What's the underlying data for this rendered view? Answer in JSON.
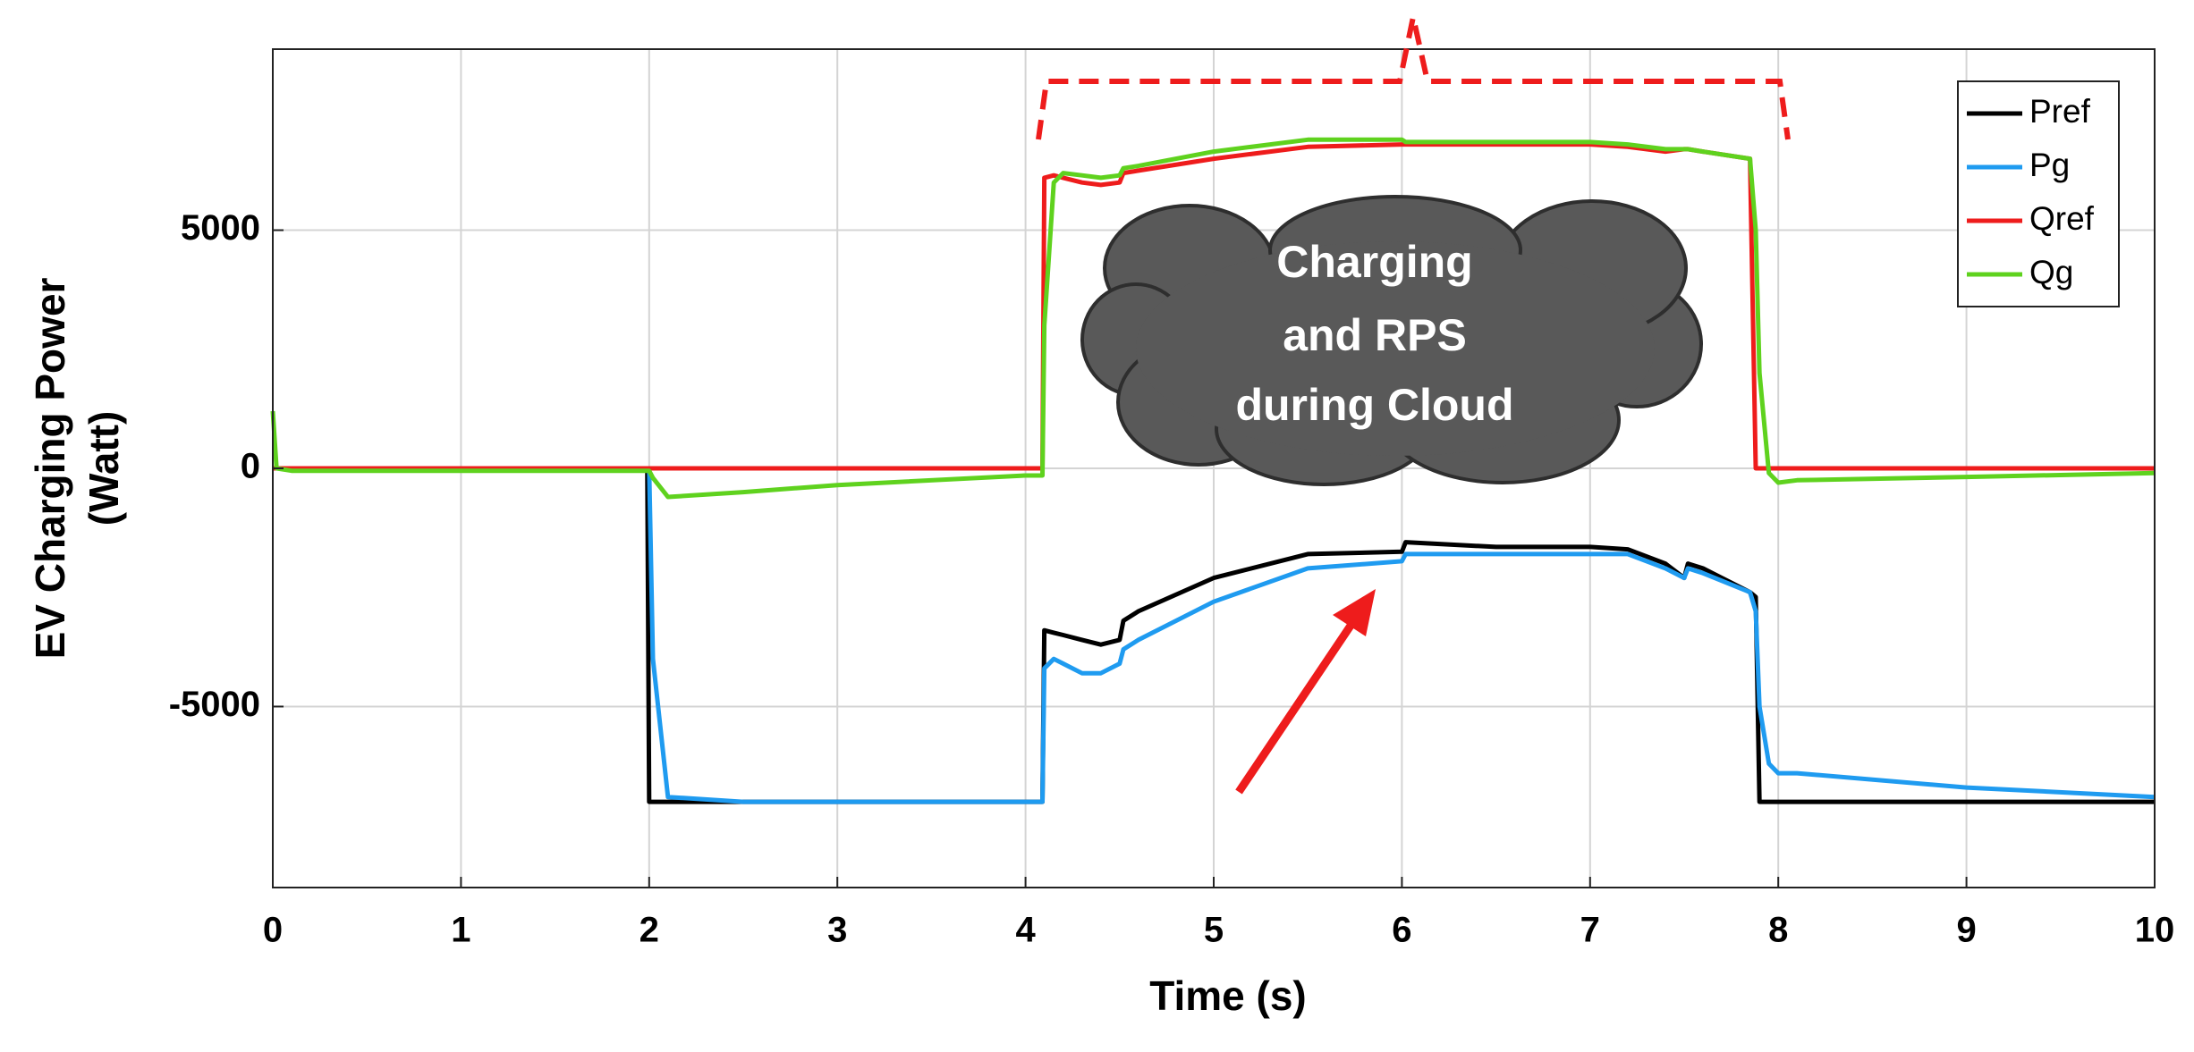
{
  "chart_data": {
    "type": "line",
    "xlabel": "Time (s)",
    "ylabel": [
      "EV Charging Power",
      "(Watt)"
    ],
    "annotation": [
      "Charging",
      "and RPS",
      "during Cloud"
    ],
    "x": [
      0,
      0.02,
      0.1,
      1,
      1.99,
      2,
      2.02,
      2.1,
      2.5,
      3,
      4,
      4.09,
      4.1,
      4.15,
      4.2,
      4.3,
      4.4,
      4.5,
      4.52,
      4.6,
      5,
      5.5,
      6,
      6.02,
      6.5,
      7,
      7.2,
      7.4,
      7.5,
      7.52,
      7.6,
      7.85,
      7.88,
      7.9,
      7.95,
      8,
      8.1,
      9,
      10
    ],
    "series": [
      {
        "name": "Pref",
        "color": "#000000",
        "values": [
          0,
          0,
          0,
          0,
          0,
          -7000,
          -7000,
          -7000,
          -7000,
          -7000,
          -7000,
          -7000,
          -3400,
          -3450,
          -3500,
          -3600,
          -3700,
          -3600,
          -3200,
          -3000,
          -2300,
          -1800,
          -1750,
          -1550,
          -1650,
          -1650,
          -1700,
          -2000,
          -2300,
          -2000,
          -2100,
          -2600,
          -2700,
          -7000,
          -7000,
          -7000,
          -7000,
          -7000,
          -7000
        ]
      },
      {
        "name": "Pg",
        "color": "#1f9bf0",
        "values": [
          0,
          0,
          0,
          0,
          0,
          0,
          -4000,
          -6900,
          -7000,
          -7000,
          -7000,
          -7000,
          -4200,
          -4000,
          -4100,
          -4300,
          -4300,
          -4100,
          -3800,
          -3600,
          -2800,
          -2100,
          -1950,
          -1800,
          -1800,
          -1800,
          -1800,
          -2100,
          -2300,
          -2100,
          -2200,
          -2600,
          -3000,
          -5000,
          -6200,
          -6400,
          -6400,
          -6700,
          -6900
        ]
      },
      {
        "name": "Qref",
        "color": "#ee1c1c",
        "values": [
          0,
          0,
          0,
          0,
          0,
          0,
          0,
          0,
          0,
          0,
          0,
          0,
          6100,
          6150,
          6100,
          6000,
          5950,
          6000,
          6200,
          6250,
          6500,
          6750,
          6800,
          6800,
          6800,
          6800,
          6750,
          6650,
          6700,
          6700,
          6650,
          6500,
          0,
          0,
          0,
          0,
          0,
          0,
          0
        ]
      },
      {
        "name": "Qg",
        "color": "#5fd21e",
        "values": [
          1200,
          0,
          -50,
          -50,
          -50,
          -50,
          -200,
          -600,
          -500,
          -350,
          -150,
          -150,
          3000,
          6000,
          6200,
          6150,
          6100,
          6150,
          6300,
          6350,
          6650,
          6900,
          6900,
          6850,
          6850,
          6850,
          6800,
          6700,
          6700,
          6700,
          6650,
          6500,
          5000,
          2000,
          -100,
          -300,
          -250,
          -180,
          -100
        ]
      }
    ],
    "xlim": [
      0,
      10
    ],
    "xticks": [
      0,
      1,
      2,
      3,
      4,
      5,
      6,
      7,
      8,
      9,
      10
    ],
    "ylim": [
      -8800,
      8800
    ],
    "yticks": [
      -5000,
      0,
      5000
    ],
    "grid": true,
    "legend": "upper right"
  }
}
